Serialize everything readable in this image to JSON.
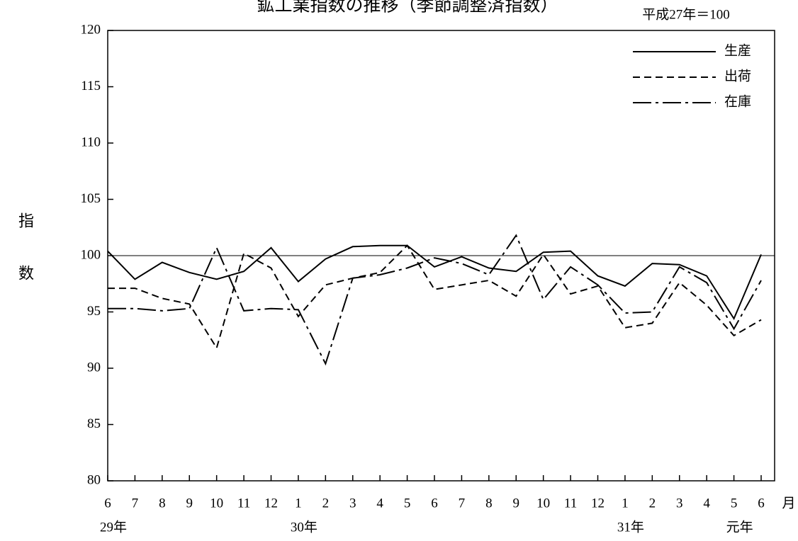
{
  "chart_data": {
    "type": "line",
    "title": "鉱工業指数の推移（季節調整済指数）",
    "subtitle": "平成27年＝100",
    "y_label": "指数",
    "x_unit": "月",
    "categories": [
      "6",
      "7",
      "8",
      "9",
      "10",
      "11",
      "12",
      "1",
      "2",
      "3",
      "4",
      "5",
      "6",
      "7",
      "8",
      "9",
      "10",
      "11",
      "12",
      "1",
      "2",
      "3",
      "4",
      "5",
      "6"
    ],
    "x_groups": [
      {
        "label": "29年",
        "at": 0
      },
      {
        "label": "30年",
        "at": 7
      },
      {
        "label": "31年",
        "at": 19
      },
      {
        "label": "元年",
        "at": 23
      }
    ],
    "ylim": [
      80,
      120
    ],
    "yticks": [
      80,
      85,
      90,
      95,
      100,
      105,
      110,
      115,
      120
    ],
    "reference_line": 100,
    "legend": "top-right",
    "series": [
      {
        "name": "生産",
        "color": "#000000",
        "dash": "solid",
        "values": [
          100.4,
          97.9,
          99.4,
          98.5,
          97.9,
          98.6,
          100.7,
          97.7,
          99.7,
          100.8,
          100.9,
          100.9,
          99.0,
          99.9,
          98.9,
          98.6,
          100.3,
          100.4,
          98.2,
          97.3,
          99.3,
          99.2,
          98.2,
          94.4,
          100.1
        ]
      },
      {
        "name": "出荷",
        "color": "#000000",
        "dash": "dashed",
        "values": [
          97.1,
          97.1,
          96.2,
          95.7,
          91.8,
          100.2,
          98.9,
          94.6,
          97.4,
          98.0,
          98.5,
          100.9,
          97.0,
          97.4,
          97.8,
          96.4,
          100.1,
          96.6,
          97.3,
          93.6,
          94.0,
          97.6,
          95.6,
          92.9,
          94.3
        ]
      },
      {
        "name": "在庫",
        "color": "#000000",
        "dash": "dashdot",
        "values": [
          95.3,
          95.3,
          95.1,
          95.3,
          100.7,
          95.1,
          95.3,
          95.2,
          90.4,
          98.0,
          98.3,
          98.9,
          99.8,
          99.3,
          98.3,
          101.8,
          96.1,
          99.0,
          97.4,
          94.9,
          95.0,
          99.0,
          97.6,
          93.5,
          97.8
        ]
      }
    ]
  }
}
